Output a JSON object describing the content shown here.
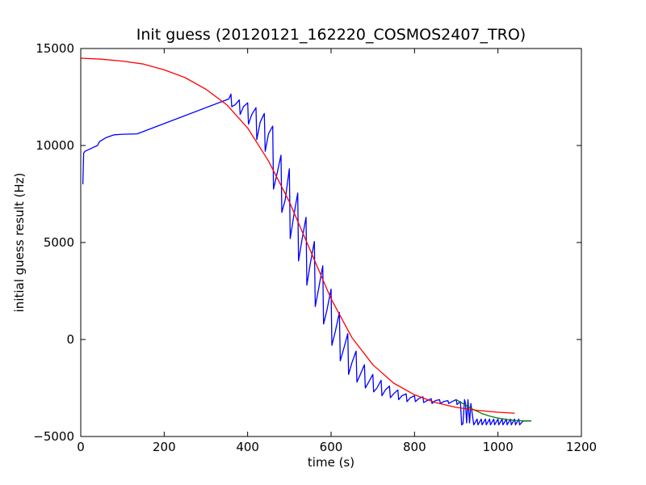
{
  "chart_data": {
    "type": "line",
    "title": "Init guess (20120121_162220_COSMOS2407_TRO)",
    "xlabel": "time (s)",
    "ylabel": "initial guess result (Hz)",
    "xlim": [
      0,
      1200
    ],
    "ylim": [
      -5000,
      15000
    ],
    "xticks": [
      0,
      200,
      400,
      600,
      800,
      1000,
      1200
    ],
    "yticks": [
      -5000,
      0,
      5000,
      10000,
      15000
    ],
    "xtick_labels": [
      "0",
      "200",
      "400",
      "600",
      "800",
      "1000",
      "1200"
    ],
    "ytick_labels": [
      "−5000",
      "0",
      "5000",
      "10000",
      "15000"
    ],
    "grid": false,
    "legend": "none",
    "series": [
      {
        "color": "#0000ff",
        "x": [
          5,
          7,
          10,
          20,
          40,
          45,
          60,
          80,
          100,
          135,
          355,
          360,
          362,
          370,
          380,
          382,
          390,
          400,
          402,
          410,
          420,
          422,
          430,
          440,
          442,
          450,
          460,
          462,
          470,
          480,
          482,
          490,
          500,
          502,
          510,
          520,
          522,
          530,
          540,
          542,
          550,
          560,
          562,
          570,
          580,
          582,
          590,
          600,
          602,
          610,
          620,
          622,
          630,
          640,
          642,
          650,
          660,
          662,
          670,
          680,
          682,
          690,
          700,
          702,
          710,
          720,
          722,
          730,
          740,
          742,
          750,
          760,
          762,
          770,
          780,
          782,
          790,
          800,
          802,
          810,
          820,
          822,
          830,
          840,
          842,
          850,
          860,
          862,
          870,
          880,
          882,
          890,
          900,
          902,
          910,
          913,
          916,
          920,
          922,
          925,
          928,
          932,
          935,
          940,
          942,
          950,
          952,
          960,
          962,
          970,
          972,
          980,
          982,
          990,
          992,
          1000,
          1002,
          1010,
          1012,
          1020,
          1022,
          1030,
          1032,
          1040,
          1042,
          1050,
          1052,
          1060,
          1080
        ],
        "y": [
          8000,
          9600,
          9700,
          9800,
          10000,
          10200,
          10400,
          10550,
          10580,
          10600,
          12400,
          12650,
          12000,
          12100,
          12350,
          11600,
          12000,
          12200,
          11100,
          11600,
          11950,
          10300,
          11200,
          11650,
          9700,
          10600,
          11000,
          7750,
          8500,
          9500,
          6550,
          7200,
          8800,
          5200,
          6300,
          7550,
          4050,
          5100,
          6300,
          2800,
          3900,
          5050,
          1700,
          2600,
          3800,
          800,
          1500,
          2600,
          -300,
          400,
          1400,
          -1100,
          -500,
          300,
          -1800,
          -1200,
          -600,
          -2200,
          -1800,
          -1300,
          -2500,
          -2200,
          -1800,
          -2700,
          -2500,
          -2100,
          -2900,
          -2600,
          -2400,
          -3000,
          -2800,
          -2600,
          -3100,
          -2900,
          -2800,
          -3200,
          -3000,
          -2900,
          -3200,
          -3050,
          -2950,
          -3250,
          -3150,
          -3050,
          -3300,
          -3150,
          -3100,
          -3300,
          -3200,
          -3150,
          -3300,
          -3200,
          -3100,
          -3350,
          -3200,
          -4400,
          -4350,
          -3100,
          -3300,
          -4300,
          -3100,
          -4300,
          -3300,
          -4100,
          -4400,
          -4100,
          -4400,
          -4100,
          -4400,
          -4100,
          -4400,
          -4100,
          -4400,
          -4100,
          -4400,
          -4100,
          -4400,
          -4100,
          -4400,
          -4100,
          -4400,
          -4100,
          -4400,
          -4100,
          -4400,
          -4100,
          -4400,
          -4200,
          -4200
        ]
      },
      {
        "color": "#008000",
        "x": [
          900,
          920,
          940,
          960,
          980,
          1000,
          1020,
          1040,
          1060,
          1080
        ],
        "y": [
          -3100,
          -3350,
          -3600,
          -3800,
          -3950,
          -4050,
          -4120,
          -4170,
          -4190,
          -4200
        ]
      },
      {
        "color": "#ff0000",
        "x": [
          0,
          50,
          100,
          150,
          200,
          250,
          300,
          350,
          400,
          450,
          500,
          550,
          600,
          650,
          700,
          750,
          800,
          850,
          900,
          950,
          1000,
          1040
        ],
        "y": [
          14500,
          14450,
          14350,
          14200,
          13900,
          13500,
          12900,
          12100,
          10900,
          9200,
          7100,
          4600,
          2100,
          100,
          -1300,
          -2250,
          -2850,
          -3250,
          -3500,
          -3650,
          -3750,
          -3800
        ]
      }
    ]
  }
}
